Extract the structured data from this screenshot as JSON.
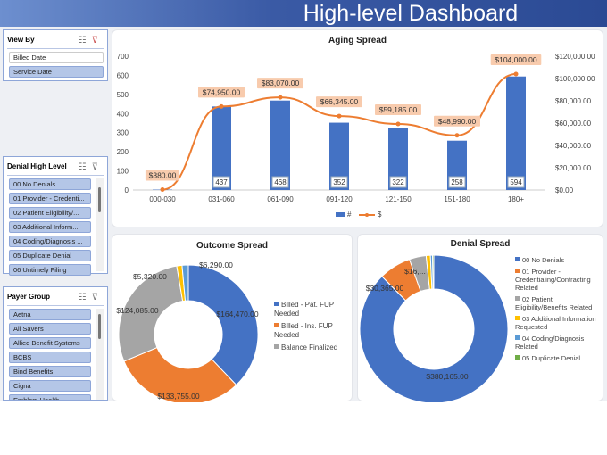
{
  "header": {
    "title": "High-level Dashboard"
  },
  "colors": {
    "blue": "#4472c4",
    "orange": "#ed7d31",
    "gray": "#a5a5a5",
    "yellow": "#ffc000",
    "lightblue": "#5b9bd5",
    "green": "#70ad47"
  },
  "slicers": [
    {
      "title": "View By",
      "items": [
        {
          "label": "Billed Date",
          "selected": false
        },
        {
          "label": "Service Date",
          "selected": true
        }
      ]
    },
    {
      "title": "Denial High Level",
      "items": [
        {
          "label": "00 No Denials",
          "selected": true
        },
        {
          "label": "01 Provider - Credenti...",
          "selected": true
        },
        {
          "label": "02 Patient Eligibility/...",
          "selected": true
        },
        {
          "label": "03 Additional Inform...",
          "selected": true
        },
        {
          "label": "04 Coding/Diagnosis ...",
          "selected": true
        },
        {
          "label": "05 Duplicate Denial",
          "selected": true
        },
        {
          "label": "06 Untimely Filing",
          "selected": true
        }
      ]
    },
    {
      "title": "Payer Group",
      "items": [
        {
          "label": "Aetna",
          "selected": true
        },
        {
          "label": "All Savers",
          "selected": true
        },
        {
          "label": "Allied Benefit Systems",
          "selected": true
        },
        {
          "label": "BCBS",
          "selected": true
        },
        {
          "label": "Bind Benefits",
          "selected": true
        },
        {
          "label": "Cigna",
          "selected": true
        },
        {
          "label": "Emblem Health",
          "selected": true
        }
      ]
    }
  ],
  "chart_data": [
    {
      "type": "bar+line",
      "title": "Aging Spread",
      "categories": [
        "000-030",
        "031-060",
        "061-090",
        "091-120",
        "121-150",
        "151-180",
        "180+"
      ],
      "series": [
        {
          "name": "#",
          "type": "bar",
          "axis": "left",
          "values": [
            2,
            437,
            468,
            352,
            322,
            258,
            594
          ],
          "labels": [
            "",
            "437",
            "468",
            "352",
            "322",
            "258",
            "594"
          ]
        },
        {
          "name": "$",
          "type": "line",
          "axis": "right",
          "values": [
            380,
            74950,
            83070,
            66345,
            59185,
            48990,
            104000
          ],
          "labels": [
            "$380.00",
            "$74,950.00",
            "$83,070.00",
            "$66,345.00",
            "$59,185.00",
            "$48,990.00",
            "$104,000.00"
          ]
        }
      ],
      "left_ticks": [
        "0",
        "100",
        "200",
        "300",
        "400",
        "500",
        "600",
        "700"
      ],
      "ylim": [
        0,
        700
      ],
      "right_ticks": [
        "$0.00",
        "$20,000.00",
        "$40,000.00",
        "$60,000.00",
        "$80,000.00",
        "$100,000.00",
        "$120,000.00"
      ],
      "y2lim": [
        0,
        120000
      ],
      "legend": "bottom"
    },
    {
      "type": "pie",
      "donut": true,
      "title": "Outcome Spread",
      "slices": [
        {
          "name": "Billed - Pat. FUP Needed",
          "value": 164470,
          "label": "$164,470.00",
          "color": "#4472c4"
        },
        {
          "name": "Billed - Ins. FUP Needed",
          "value": 133755,
          "label": "$133,755.00",
          "color": "#ed7d31"
        },
        {
          "name": "Balance Finalized",
          "value": 124085,
          "label": "$124,085.00",
          "color": "#a5a5a5"
        },
        {
          "value": 5320,
          "label": "$5,320.00",
          "color": "#ffc000"
        },
        {
          "value": 6290,
          "label": "$6,290.00",
          "color": "#5b9bd5"
        }
      ],
      "legend": "right"
    },
    {
      "type": "pie",
      "donut": true,
      "title": "Denial Spread",
      "slices": [
        {
          "name": "00 No Denials",
          "value": 380165,
          "label": "$380,165.00",
          "color": "#4472c4"
        },
        {
          "name": "01 Provider - Credentialing/Contracting Related",
          "value": 30365,
          "label": "$30,365.00",
          "color": "#ed7d31"
        },
        {
          "name": "02 Patient Eligibility/Benefits Related",
          "value": 16000,
          "label": "$16,...",
          "color": "#a5a5a5"
        },
        {
          "name": "03 Additional Information Requested",
          "value": 4000,
          "color": "#ffc000"
        },
        {
          "name": "04 Coding/Diagnosis Related",
          "value": 2000,
          "color": "#5b9bd5"
        },
        {
          "name": "05 Duplicate Denial",
          "value": 1200,
          "color": "#70ad47"
        }
      ],
      "legend": "right"
    }
  ]
}
